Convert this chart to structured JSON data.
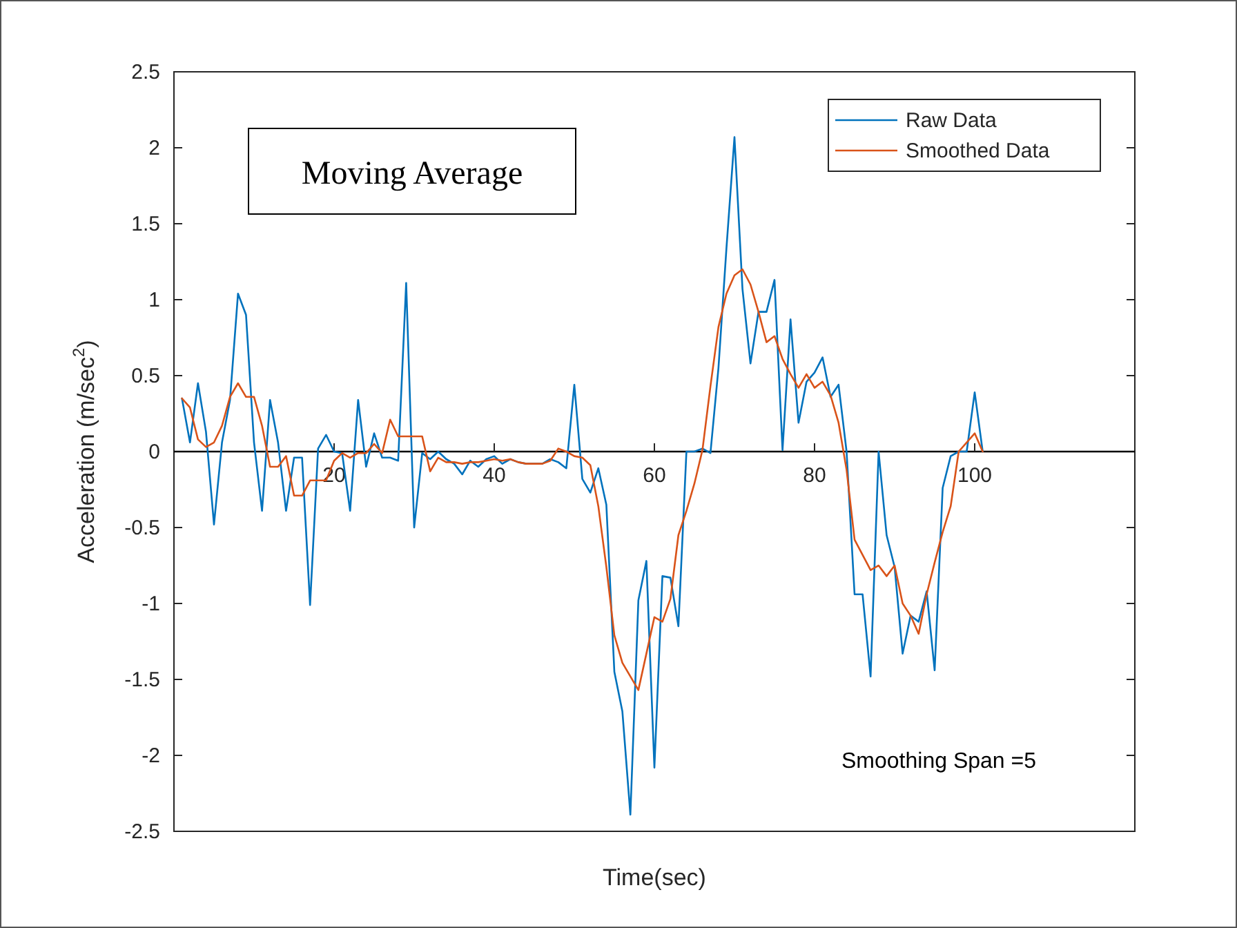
{
  "chart_data": {
    "type": "line",
    "xlabel": "Time(sec)",
    "ylabel": "Acceleration (m/sec$^{2}$)",
    "annotations": [
      "Moving Average",
      "Smoothing Span =5"
    ],
    "xlim": [
      0,
      120
    ],
    "ylim": [
      -2.5,
      2.5
    ],
    "xticks": [
      20,
      40,
      60,
      80,
      100
    ],
    "yticks": [
      -2.5,
      -2,
      -1.5,
      -1,
      -0.5,
      0,
      0.5,
      1,
      1.5,
      2,
      2.5
    ],
    "grid": false,
    "legend": "top right",
    "line_style": "solid",
    "marker": "none",
    "x": [
      1,
      2,
      3,
      4,
      5,
      6,
      7,
      8,
      9,
      10,
      11,
      12,
      13,
      14,
      15,
      16,
      17,
      18,
      19,
      20,
      21,
      22,
      23,
      24,
      25,
      26,
      27,
      28,
      29,
      30,
      31,
      32,
      33,
      34,
      35,
      36,
      37,
      38,
      39,
      40,
      41,
      42,
      43,
      44,
      45,
      46,
      47,
      48,
      49,
      50,
      51,
      52,
      53,
      54,
      55,
      56,
      57,
      58,
      59,
      60,
      61,
      62,
      63,
      64,
      65,
      66,
      67,
      68,
      69,
      70,
      71,
      72,
      73,
      74,
      75,
      76,
      77,
      78,
      79,
      80,
      81,
      82,
      83,
      84,
      85,
      86,
      87,
      88,
      89,
      90,
      91,
      92,
      93,
      94,
      95,
      96,
      97,
      98,
      99,
      100,
      101
    ],
    "series": [
      {
        "name": "Raw Data",
        "color": "#0072bd",
        "values": [
          0.35,
          0.06,
          0.45,
          0.13,
          -0.48,
          0.06,
          0.34,
          1.04,
          0.9,
          0.06,
          -0.39,
          0.34,
          0.06,
          -0.39,
          -0.04,
          -0.04,
          -1.01,
          0.02,
          0.11,
          0,
          -0.01,
          -0.39,
          0.34,
          -0.1,
          0.12,
          -0.04,
          -0.04,
          -0.06,
          1.11,
          -0.5,
          -0.01,
          -0.05,
          0,
          -0.05,
          -0.08,
          -0.15,
          -0.06,
          -0.1,
          -0.05,
          -0.03,
          -0.08,
          -0.05,
          -0.07,
          -0.08,
          -0.08,
          -0.08,
          -0.05,
          -0.07,
          -0.11,
          0.44,
          -0.18,
          -0.27,
          -0.11,
          -0.35,
          -1.45,
          -1.71,
          -2.39,
          -0.98,
          -0.72,
          -2.08,
          -0.82,
          -0.83,
          -1.15,
          0,
          0,
          0.02,
          -0.01,
          0.55,
          1.34,
          2.07,
          1.07,
          0.58,
          0.92,
          0.92,
          1.13,
          0.01,
          0.87,
          0.19,
          0.46,
          0.52,
          0.62,
          0.36,
          0.44,
          0,
          -0.94,
          -0.94,
          -1.48,
          0,
          -0.55,
          -0.76,
          -1.33,
          -1.08,
          -1.12,
          -0.92,
          -1.44,
          -0.24,
          -0.03,
          0,
          0,
          0.39,
          0
        ]
      },
      {
        "name": "Smoothed Data",
        "color": "#d95319",
        "values": [
          0.35,
          0.29,
          0.08,
          0.03,
          0.06,
          0.17,
          0.36,
          0.45,
          0.36,
          0.36,
          0.17,
          -0.1,
          -0.1,
          -0.03,
          -0.29,
          -0.29,
          -0.19,
          -0.19,
          -0.19,
          -0.06,
          -0.01,
          -0.04,
          -0.01,
          -0.01,
          0.05,
          -0.01,
          0.21,
          0.1,
          0.1,
          0.1,
          0.1,
          -0.13,
          -0.04,
          -0.07,
          -0.07,
          -0.08,
          -0.07,
          -0.07,
          -0.06,
          -0.05,
          -0.06,
          -0.05,
          -0.07,
          -0.08,
          -0.08,
          -0.08,
          -0.06,
          0.02,
          0,
          -0.03,
          -0.04,
          -0.09,
          -0.36,
          -0.76,
          -1.21,
          -1.39,
          -1.48,
          -1.57,
          -1.33,
          -1.09,
          -1.12,
          -0.97,
          -0.55,
          -0.39,
          -0.21,
          0.01,
          0.43,
          0.82,
          1.04,
          1.16,
          1.2,
          1.1,
          0.92,
          0.72,
          0.76,
          0.61,
          0.51,
          0.42,
          0.51,
          0.42,
          0.46,
          0.37,
          0.19,
          -0.12,
          -0.58,
          -0.68,
          -0.78,
          -0.75,
          -0.82,
          -0.75,
          -1,
          -1.08,
          -1.2,
          -0.94,
          -0.73,
          -0.53,
          -0.36,
          0,
          0.06,
          0.12,
          0
        ]
      }
    ]
  }
}
